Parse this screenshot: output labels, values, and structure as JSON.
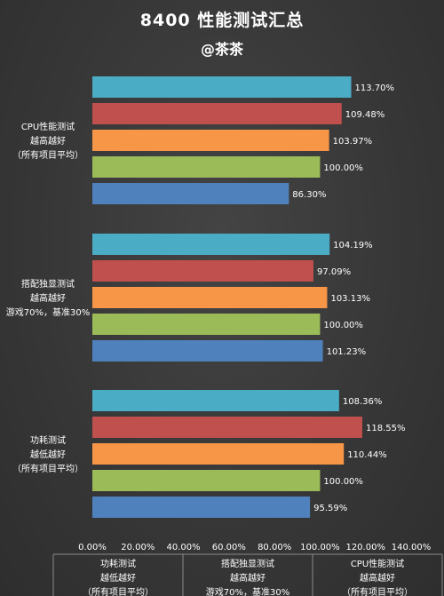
{
  "title": "8400 性能测试汇总",
  "subtitle": "@茶茶",
  "chart_data": {
    "type": "bar",
    "orientation": "horizontal",
    "grid": false,
    "xlim": [
      0,
      140
    ],
    "ticks": [
      "0.00%",
      "20.00%",
      "40.00%",
      "60.00%",
      "80.00%",
      "100.00%",
      "120.00%",
      "140.00%"
    ],
    "groups": [
      {
        "label_lines": [
          "CPU性能测试",
          "越高越好",
          "（所有项目平均）"
        ],
        "bars": [
          {
            "value": 113.7,
            "label": "113.70%",
            "color": "#4bacc6"
          },
          {
            "value": 109.48,
            "label": "109.48%",
            "color": "#c0504d"
          },
          {
            "value": 103.97,
            "label": "103.97%",
            "color": "#f79646"
          },
          {
            "value": 100.0,
            "label": "100.00%",
            "color": "#9bbb59"
          },
          {
            "value": 86.3,
            "label": "86.30%",
            "color": "#4f81bd"
          }
        ]
      },
      {
        "label_lines": [
          "搭配独显测试",
          "越高越好",
          "游戏70%，基准30%"
        ],
        "bars": [
          {
            "value": 104.19,
            "label": "104.19%",
            "color": "#4bacc6"
          },
          {
            "value": 97.09,
            "label": "97.09%",
            "color": "#c0504d"
          },
          {
            "value": 103.13,
            "label": "103.13%",
            "color": "#f79646"
          },
          {
            "value": 100.0,
            "label": "100.00%",
            "color": "#9bbb59"
          },
          {
            "value": 101.23,
            "label": "101.23%",
            "color": "#4f81bd"
          }
        ]
      },
      {
        "label_lines": [
          "功耗测试",
          "越低越好",
          "（所有项目平均）"
        ],
        "bars": [
          {
            "value": 108.36,
            "label": "108.36%",
            "color": "#4bacc6"
          },
          {
            "value": 118.55,
            "label": "118.55%",
            "color": "#c0504d"
          },
          {
            "value": 110.44,
            "label": "110.44%",
            "color": "#f79646"
          },
          {
            "value": 100.0,
            "label": "100.00%",
            "color": "#9bbb59"
          },
          {
            "value": 95.59,
            "label": "95.59%",
            "color": "#4f81bd"
          }
        ]
      }
    ],
    "table_columns": [
      [
        "功耗测试",
        "越低越好",
        "（所有项目平均）"
      ],
      [
        "搭配独显测试",
        "越高越好",
        "游戏70%，基准30%"
      ],
      [
        "CPU性能测试",
        "越高越好",
        "（所有项目平均）"
      ]
    ]
  }
}
